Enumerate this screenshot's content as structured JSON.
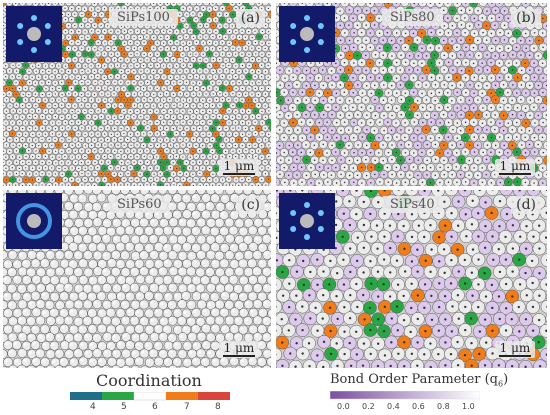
{
  "panels": {
    "a": {
      "label": "SiPs100",
      "letter": "(a)",
      "scale": "1 μm"
    },
    "b": {
      "label": "SiPs80",
      "letter": "(b)",
      "scale": "1 μm"
    },
    "c": {
      "label": "SiPs60",
      "letter": "(c)",
      "scale": "1 μm"
    },
    "d": {
      "label": "SiPs40",
      "letter": "(d)",
      "scale": "1 μm"
    }
  },
  "coordination_legend": {
    "title": "Coordination",
    "ticks": [
      "4",
      "5",
      "6",
      "7",
      "8"
    ],
    "colors": [
      "#1f6f8b",
      "#2aa745",
      "#ffffff",
      "#f07d1a",
      "#d9453c"
    ]
  },
  "bond_order_legend": {
    "title": "Bond Order Parameter (q",
    "subscript": "6",
    "title_end": ")",
    "ticks": [
      "0.0",
      "0.2",
      "0.4",
      "0.6",
      "0.8",
      "1.0"
    ],
    "gradient_start": "#7b4fa0",
    "gradient_end": "#ffffff"
  }
}
